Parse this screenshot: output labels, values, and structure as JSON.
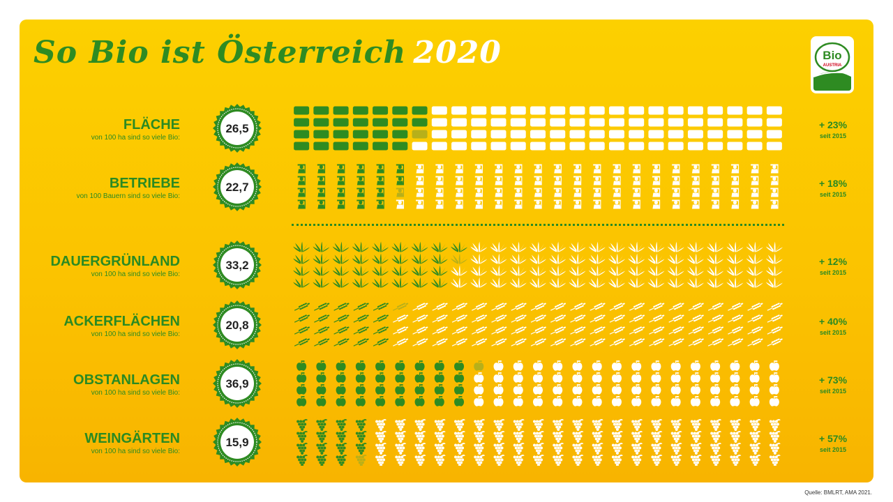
{
  "title": {
    "main": "So Bio ist Österreich",
    "year": "2020"
  },
  "logo": {
    "line1": "Bio",
    "line2": "AUSTRIA"
  },
  "source": "Quelle: BMLRT, AMA 2021.",
  "colors": {
    "background": "#fcc800",
    "organic": "#2e8b22",
    "conventional": "#ffffff",
    "text": "#2a8a22"
  },
  "chart_data": {
    "type": "table",
    "units_per_category": 100,
    "series": [
      {
        "name": "FLÄCHE",
        "subtitle": "von 100 ha sind so viele Bio:",
        "value": 26.5,
        "value_label": "26,5",
        "change": "+ 23%",
        "change_note": "seit 2015",
        "icon": "field-tile-icon"
      },
      {
        "name": "BETRIEBE",
        "subtitle": "von 100 Bauern sind so viele Bio:",
        "value": 22.7,
        "value_label": "22,7",
        "change": "+ 18%",
        "change_note": "seit 2015",
        "icon": "farmer-icon"
      },
      {
        "name": "DAUERGRÜNLAND",
        "subtitle": "von 100 ha sind so viele Bio:",
        "value": 33.2,
        "value_label": "33,2",
        "change": "+ 12%",
        "change_note": "seit 2015",
        "icon": "grass-icon"
      },
      {
        "name": "ACKERFLÄCHEN",
        "subtitle": "von 100 ha sind so viele Bio:",
        "value": 20.8,
        "value_label": "20,8",
        "change": "+ 40%",
        "change_note": "seit 2015",
        "icon": "wheat-icon"
      },
      {
        "name": "OBSTANLAGEN",
        "subtitle": "von 100 ha sind so viele Bio:",
        "value": 36.9,
        "value_label": "36,9",
        "change": "+ 73%",
        "change_note": "seit 2015",
        "icon": "apple-icon"
      },
      {
        "name": "WEINGÄRTEN",
        "subtitle": "von 100 ha sind so viele Bio:",
        "value": 15.9,
        "value_label": "15,9",
        "change": "+ 57%",
        "change_note": "seit 2015",
        "icon": "grapes-icon"
      }
    ]
  }
}
